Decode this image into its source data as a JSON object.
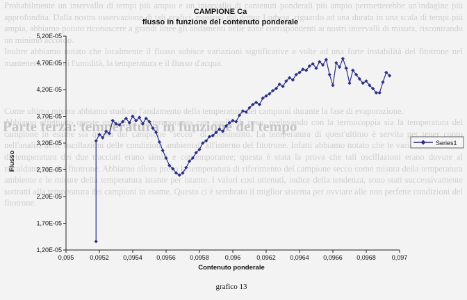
{
  "background": {
    "paragraphs": [
      "Probabilmente un intervallo di tempi più ampio e un intervallo di contenuti ponderali più ampio permetterebbe un'indagine più approfondita. Dalla nostra osservazione di tali grafici, mostrati dal dottor Ludwig, riguardo ad una durata in una scala di tempi più ampia, abbiamo potuto riconoscere a grandi linee gli andamenti nelle zone corrispondenti ai nostri intervalli di misura, riscontrando un minimo accordo.",
      "Inoltre abbiamo notato che localmente il flusso subisce variazioni significative a volte ad una forte instabilità del fitotrone nel mantenere costanti l'umidità, la temperatura e il flusso d'acqua."
    ],
    "heading": "Parte terza: temperatura in funzione del tempo",
    "paragraphs2": [
      "Come ultima misura abbiamo studiato l'andamento della temperatura dei campioni durante la fase di evaporazione.",
      "Abbiamo effettuato queste misure in contemporanea con quelle di peso, prelevando con la termocoppia sia la temperatura del campione in esame sia quella del campione \"secco\" di riferimento. La temperatura di quest'ultimo è servita per tener conto nell'analisi delle oscillazioni delle condizioni ambientali all'interno del fitotrone. Infatti abbiamo notato che le variazioni anomale di temperatura dei due tracciati erano simili e contemporanee; questa è stata la prova che tali oscillazioni erano dovute al riscaldamento del fitotrone. Abbiamo allora preso la temperatura di riferimento del campione secco come misura della temperatura ambiente e le misure della temperatura istante per istante. I valori così ottenuti, indice della tendenza, sono stati successivamente sottratti alla temperatura dei campioni in esame. Questo ci è sembrato il miglior sistema per ovviare alle non perfette condizioni del fitotrone."
    ]
  },
  "chart_data": {
    "type": "line",
    "title": "CAMPIONE Ca",
    "subtitle": "flusso in funzione del contenuto ponderale",
    "xlabel": "Contenuto ponderale",
    "ylabel": "Flusso",
    "xlim": [
      0.095,
      0.097
    ],
    "ylim": [
      1.2e-05,
      5.2e-05
    ],
    "x_ticks": [
      "0,095",
      "0,0952",
      "0,0954",
      "0,0956",
      "0,0958",
      "0,096",
      "0,0962",
      "0,0964",
      "0,0966",
      "0,0968",
      "0,097"
    ],
    "y_ticks": [
      "1,20E-05",
      "1,70E-05",
      "2,20E-05",
      "2,70E-05",
      "3,20E-05",
      "3,70E-05",
      "4,20E-05",
      "4,70E-05",
      "5,20E-05"
    ],
    "grid": false,
    "legend_position": "right",
    "series": [
      {
        "name": "Series1",
        "color": "#2b2f86",
        "points": [
          [
            0.09518,
            1.36e-05
          ],
          [
            0.09518,
            3.24e-05
          ],
          [
            0.0952,
            3.36e-05
          ],
          [
            0.09522,
            3.3e-05
          ],
          [
            0.09524,
            3.42e-05
          ],
          [
            0.09526,
            3.38e-05
          ],
          [
            0.09528,
            3.62e-05
          ],
          [
            0.0953,
            3.56e-05
          ],
          [
            0.09532,
            3.54e-05
          ],
          [
            0.09534,
            3.6e-05
          ],
          [
            0.09536,
            3.66e-05
          ],
          [
            0.09538,
            3.58e-05
          ],
          [
            0.0954,
            3.7e-05
          ],
          [
            0.09542,
            3.62e-05
          ],
          [
            0.09544,
            3.68e-05
          ],
          [
            0.09546,
            3.56e-05
          ],
          [
            0.09548,
            3.66e-05
          ],
          [
            0.0955,
            3.6e-05
          ],
          [
            0.09552,
            3.48e-05
          ],
          [
            0.09554,
            3.4e-05
          ],
          [
            0.09556,
            3.22e-05
          ],
          [
            0.09558,
            3.06e-05
          ],
          [
            0.0956,
            2.92e-05
          ],
          [
            0.09562,
            2.78e-05
          ],
          [
            0.09564,
            2.72e-05
          ],
          [
            0.09566,
            2.64e-05
          ],
          [
            0.09568,
            2.6e-05
          ],
          [
            0.0957,
            2.64e-05
          ],
          [
            0.09572,
            2.74e-05
          ],
          [
            0.09574,
            2.86e-05
          ],
          [
            0.09576,
            2.92e-05
          ],
          [
            0.09578,
            3.02e-05
          ],
          [
            0.0958,
            3.08e-05
          ],
          [
            0.09582,
            3.2e-05
          ],
          [
            0.09584,
            3.24e-05
          ],
          [
            0.09586,
            3.32e-05
          ],
          [
            0.09588,
            3.34e-05
          ],
          [
            0.0959,
            3.4e-05
          ],
          [
            0.09592,
            3.46e-05
          ],
          [
            0.09594,
            3.42e-05
          ],
          [
            0.09596,
            3.52e-05
          ],
          [
            0.09598,
            3.58e-05
          ],
          [
            0.096,
            3.62e-05
          ],
          [
            0.09602,
            3.6e-05
          ],
          [
            0.09604,
            3.72e-05
          ],
          [
            0.09606,
            3.8e-05
          ],
          [
            0.09608,
            3.78e-05
          ],
          [
            0.0961,
            3.86e-05
          ],
          [
            0.09612,
            3.92e-05
          ],
          [
            0.09614,
            3.96e-05
          ],
          [
            0.09616,
            3.92e-05
          ],
          [
            0.09618,
            4.04e-05
          ],
          [
            0.0962,
            4.08e-05
          ],
          [
            0.09622,
            4.12e-05
          ],
          [
            0.09624,
            4.18e-05
          ],
          [
            0.09626,
            4.22e-05
          ],
          [
            0.09628,
            4.3e-05
          ],
          [
            0.0963,
            4.26e-05
          ],
          [
            0.09632,
            4.36e-05
          ],
          [
            0.09634,
            4.42e-05
          ],
          [
            0.09636,
            4.38e-05
          ],
          [
            0.09638,
            4.48e-05
          ],
          [
            0.0964,
            4.52e-05
          ],
          [
            0.09642,
            4.58e-05
          ],
          [
            0.09644,
            4.56e-05
          ],
          [
            0.09646,
            4.64e-05
          ],
          [
            0.09648,
            4.68e-05
          ],
          [
            0.0965,
            4.6e-05
          ],
          [
            0.09652,
            4.72e-05
          ],
          [
            0.09654,
            4.66e-05
          ],
          [
            0.09656,
            4.76e-05
          ],
          [
            0.09658,
            4.48e-05
          ],
          [
            0.0966,
            4.28e-05
          ],
          [
            0.09662,
            4.7e-05
          ],
          [
            0.09664,
            4.62e-05
          ],
          [
            0.09666,
            4.78e-05
          ],
          [
            0.09668,
            4.6e-05
          ],
          [
            0.0967,
            4.32e-05
          ],
          [
            0.09672,
            4.56e-05
          ],
          [
            0.09674,
            4.48e-05
          ],
          [
            0.09676,
            4.4e-05
          ],
          [
            0.09678,
            4.32e-05
          ],
          [
            0.0968,
            4.36e-05
          ],
          [
            0.09682,
            4.28e-05
          ],
          [
            0.09684,
            4.22e-05
          ],
          [
            0.09686,
            4.14e-05
          ],
          [
            0.09688,
            4.14e-05
          ],
          [
            0.0969,
            4.34e-05
          ],
          [
            0.09692,
            4.52e-05
          ],
          [
            0.09694,
            4.46e-05
          ]
        ]
      }
    ],
    "caption": "grafico 13"
  }
}
